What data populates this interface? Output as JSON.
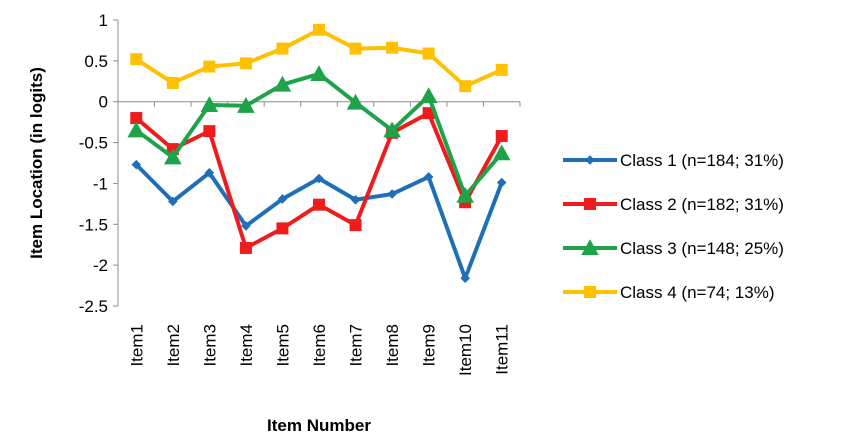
{
  "chart_data": {
    "type": "line",
    "title": "",
    "xlabel": "Item Number",
    "ylabel": "Item Location (in logits)",
    "categories": [
      "Item1",
      "Item2",
      "Item3",
      "Item4",
      "Item5",
      "Item6",
      "Item7",
      "Item8",
      "Item9",
      "Item10",
      "Item11"
    ],
    "ylim": [
      -2.5,
      1
    ],
    "yticks": [
      1,
      0.5,
      0,
      -0.5,
      -1,
      -1.5,
      -2,
      -2.5
    ],
    "ytick_labels": [
      "1",
      "0.5",
      "0",
      "-0.5",
      "-1",
      "-1.5",
      "-2",
      "-2.5"
    ],
    "grid": false,
    "legend_position": "right",
    "series": [
      {
        "name": "Class 1 (n=184; 31%)",
        "color": "#1F6FB8",
        "marker": "diamond",
        "values": [
          -0.77,
          -1.22,
          -0.87,
          -1.52,
          -1.19,
          -0.94,
          -1.2,
          -1.13,
          -0.92,
          -2.16,
          -0.99
        ]
      },
      {
        "name": "Class 2 (n=182; 31%)",
        "color": "#EE1C1C",
        "marker": "square",
        "values": [
          -0.2,
          -0.58,
          -0.36,
          -1.79,
          -1.55,
          -1.26,
          -1.51,
          -0.38,
          -0.14,
          -1.23,
          -0.42
        ]
      },
      {
        "name": "Class 3 (n=148; 25%)",
        "color": "#1EA24A",
        "marker": "triangle",
        "values": [
          -0.35,
          -0.68,
          -0.04,
          -0.05,
          0.21,
          0.34,
          -0.01,
          -0.35,
          0.07,
          -1.15,
          -0.63
        ]
      },
      {
        "name": "Class 4 (n=74; 13%)",
        "color": "#FFC000",
        "marker": "square",
        "values": [
          0.52,
          0.23,
          0.43,
          0.47,
          0.65,
          0.88,
          0.65,
          0.66,
          0.59,
          0.19,
          0.39
        ]
      }
    ]
  }
}
